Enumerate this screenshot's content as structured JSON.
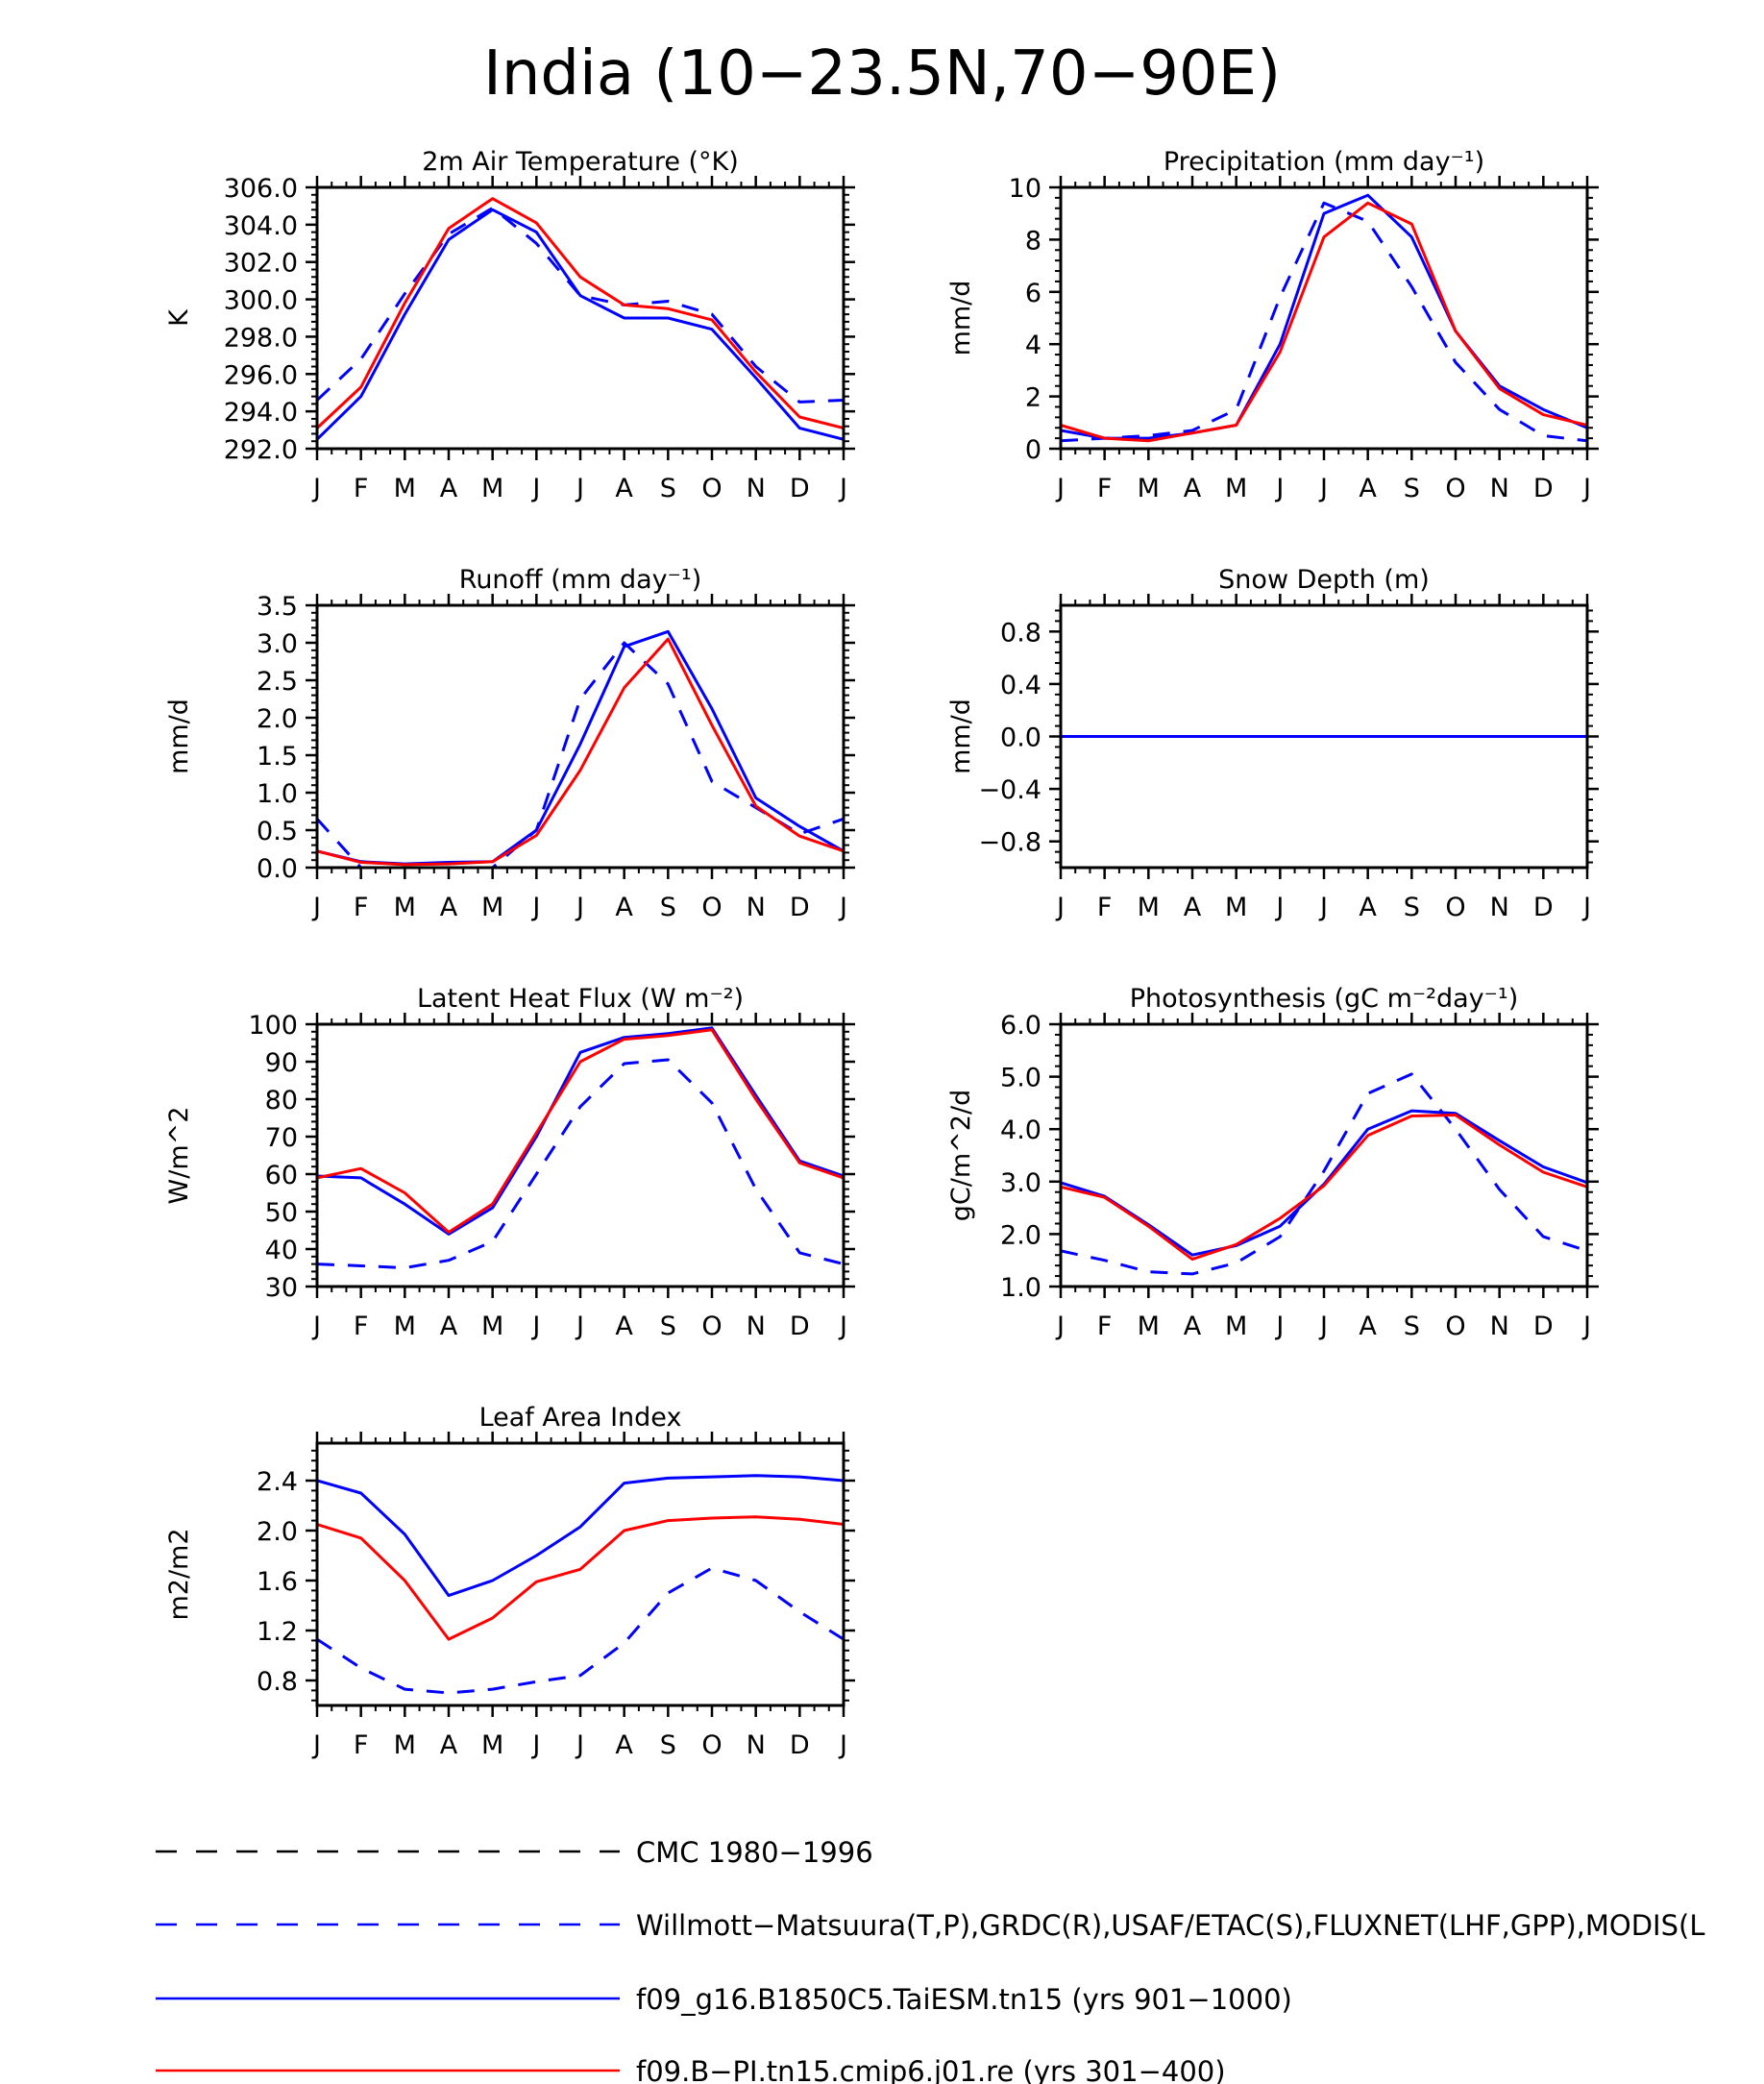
{
  "title": "India (10−23.5N,70−90E)",
  "colors": {
    "obs": "#0000ff",
    "model1": "#0000ff",
    "model2": "#ff0000",
    "cmc": "#000000"
  },
  "legend": [
    {
      "key": "cmc",
      "label": "CMC 1980−1996",
      "color": "#000000",
      "dash": true
    },
    {
      "key": "obs",
      "label": "Willmott−Matsuura(T,P),GRDC(R),USAF/ETAC(S),FLUXNET(LHF,GPP),MODIS(L",
      "color": "#0000ff",
      "dash": true
    },
    {
      "key": "model1",
      "label": "f09_g16.B1850C5.TaiESM.tn15 (yrs 901−1000)",
      "color": "#0000ff",
      "dash": false
    },
    {
      "key": "model2",
      "label": "f09.B−PI.tn15.cmip6.j01.re (yrs 301−400)",
      "color": "#ff0000",
      "dash": false
    }
  ],
  "chart_data": [
    {
      "type": "line",
      "title": "2m Air Temperature (°K)",
      "ylabel": "K",
      "x": [
        "J",
        "F",
        "M",
        "A",
        "M",
        "J",
        "J",
        "A",
        "S",
        "O",
        "N",
        "D",
        "J"
      ],
      "ylim": [
        292,
        306
      ],
      "yticks": [
        292,
        294,
        296,
        298,
        300,
        302,
        304,
        306
      ],
      "yticklabels": [
        "292.0",
        "294.0",
        "296.0",
        "298.0",
        "300.0",
        "302.0",
        "304.0",
        "306.0"
      ],
      "series": [
        {
          "key": "obs",
          "dash": true,
          "values": [
            294.6,
            296.8,
            300.3,
            303.5,
            304.9,
            303.0,
            300.2,
            299.7,
            299.9,
            299.2,
            296.4,
            294.5,
            294.6
          ]
        },
        {
          "key": "model1",
          "dash": false,
          "values": [
            292.5,
            294.8,
            299.2,
            303.2,
            304.8,
            303.6,
            300.2,
            299.0,
            299.0,
            298.4,
            295.8,
            293.1,
            292.5
          ]
        },
        {
          "key": "model2",
          "dash": false,
          "values": [
            293.1,
            295.3,
            299.8,
            303.8,
            305.4,
            304.1,
            301.2,
            299.7,
            299.5,
            298.9,
            296.1,
            293.7,
            293.1
          ]
        }
      ]
    },
    {
      "type": "line",
      "title": "Precipitation (mm day⁻¹)",
      "ylabel": "mm/d",
      "x": [
        "J",
        "F",
        "M",
        "A",
        "M",
        "J",
        "J",
        "A",
        "S",
        "O",
        "N",
        "D",
        "J"
      ],
      "ylim": [
        0,
        10
      ],
      "yticks": [
        0,
        2,
        4,
        6,
        8,
        10
      ],
      "yticklabels": [
        "0",
        "2",
        "4",
        "6",
        "8",
        "10"
      ],
      "series": [
        {
          "key": "obs",
          "dash": true,
          "values": [
            0.3,
            0.4,
            0.5,
            0.7,
            1.5,
            5.8,
            9.4,
            8.7,
            6.2,
            3.3,
            1.5,
            0.5,
            0.3
          ]
        },
        {
          "key": "model1",
          "dash": false,
          "values": [
            0.7,
            0.4,
            0.4,
            0.6,
            0.9,
            4.0,
            9.0,
            9.7,
            8.1,
            4.5,
            2.4,
            1.5,
            0.8
          ]
        },
        {
          "key": "model2",
          "dash": false,
          "values": [
            0.9,
            0.4,
            0.3,
            0.6,
            0.9,
            3.7,
            8.1,
            9.4,
            8.6,
            4.5,
            2.3,
            1.3,
            0.9
          ]
        }
      ]
    },
    {
      "type": "line",
      "title": "Runoff (mm day⁻¹)",
      "ylabel": "mm/d",
      "x": [
        "J",
        "F",
        "M",
        "A",
        "M",
        "J",
        "J",
        "A",
        "S",
        "O",
        "N",
        "D",
        "J"
      ],
      "ylim": [
        0,
        3.5
      ],
      "yticks": [
        0,
        0.5,
        1.0,
        1.5,
        2.0,
        2.5,
        3.0,
        3.5
      ],
      "yticklabels": [
        "0.0",
        "0.5",
        "1.0",
        "1.5",
        "2.0",
        "2.5",
        "3.0",
        "3.5"
      ],
      "series": [
        {
          "key": "obs",
          "dash": true,
          "values": [
            0.65,
            0.0,
            0.0,
            0.0,
            0.0,
            0.5,
            2.25,
            3.0,
            2.45,
            1.15,
            0.8,
            0.45,
            0.65
          ]
        },
        {
          "key": "model1",
          "dash": false,
          "values": [
            0.22,
            0.08,
            0.05,
            0.07,
            0.08,
            0.5,
            1.65,
            2.95,
            3.15,
            2.12,
            0.93,
            0.55,
            0.22
          ]
        },
        {
          "key": "model2",
          "dash": false,
          "values": [
            0.22,
            0.07,
            0.04,
            0.05,
            0.08,
            0.43,
            1.3,
            2.4,
            3.05,
            1.9,
            0.82,
            0.42,
            0.22
          ]
        }
      ]
    },
    {
      "type": "line",
      "title": "Snow Depth (m)",
      "ylabel": "mm/d",
      "x": [
        "J",
        "F",
        "M",
        "A",
        "M",
        "J",
        "J",
        "A",
        "S",
        "O",
        "N",
        "D",
        "J"
      ],
      "ylim": [
        -1.0,
        1.0
      ],
      "yticks": [
        -0.8,
        -0.4,
        0.0,
        0.4,
        0.8
      ],
      "yticklabels": [
        "−0.8",
        "−0.4",
        "0.0",
        "0.4",
        "0.8"
      ],
      "series": [
        {
          "key": "cmc",
          "dash": true,
          "values": [
            0,
            0,
            0,
            0,
            0,
            0,
            0,
            0,
            0,
            0,
            0,
            0,
            0
          ]
        },
        {
          "key": "model2",
          "dash": false,
          "values": [
            0,
            0,
            0,
            0,
            0,
            0,
            0,
            0,
            0,
            0,
            0,
            0,
            0
          ]
        },
        {
          "key": "model1",
          "dash": false,
          "values": [
            0,
            0,
            0,
            0,
            0,
            0,
            0,
            0,
            0,
            0,
            0,
            0,
            0
          ]
        },
        {
          "key": "obs",
          "dash": true,
          "values": [
            0,
            0,
            0,
            0,
            0,
            0,
            0,
            0,
            0,
            0,
            0,
            0,
            0
          ]
        }
      ]
    },
    {
      "type": "line",
      "title": "Latent Heat Flux (W m⁻²)",
      "ylabel": "W/m^2",
      "x": [
        "J",
        "F",
        "M",
        "A",
        "M",
        "J",
        "J",
        "A",
        "S",
        "O",
        "N",
        "D",
        "J"
      ],
      "ylim": [
        30,
        100
      ],
      "yticks": [
        30,
        40,
        50,
        60,
        70,
        80,
        90,
        100
      ],
      "yticklabels": [
        "30",
        "40",
        "50",
        "60",
        "70",
        "80",
        "90",
        "100"
      ],
      "series": [
        {
          "key": "obs",
          "dash": true,
          "values": [
            36,
            35.5,
            35,
            37,
            42,
            60,
            78,
            89.5,
            90.5,
            79,
            56,
            39,
            36
          ]
        },
        {
          "key": "model1",
          "dash": false,
          "values": [
            59.5,
            59,
            52,
            44,
            51,
            70,
            92.5,
            96.5,
            97.5,
            99,
            81,
            63.5,
            59.5
          ]
        },
        {
          "key": "model2",
          "dash": false,
          "values": [
            59,
            61.5,
            55,
            44.5,
            52,
            71,
            90,
            96,
            97,
            98.5,
            80,
            63,
            59
          ]
        }
      ]
    },
    {
      "type": "line",
      "title": "Photosynthesis (gC m⁻²day⁻¹)",
      "ylabel": "gC/m^2/d",
      "x": [
        "J",
        "F",
        "M",
        "A",
        "M",
        "J",
        "J",
        "A",
        "S",
        "O",
        "N",
        "D",
        "J"
      ],
      "ylim": [
        1.0,
        6.0
      ],
      "yticks": [
        1.0,
        2.0,
        3.0,
        4.0,
        5.0,
        6.0
      ],
      "yticklabels": [
        "1.0",
        "2.0",
        "3.0",
        "4.0",
        "5.0",
        "6.0"
      ],
      "series": [
        {
          "key": "obs",
          "dash": true,
          "values": [
            1.68,
            1.5,
            1.28,
            1.24,
            1.45,
            1.95,
            3.2,
            4.68,
            5.05,
            4.0,
            2.85,
            1.95,
            1.68
          ]
        },
        {
          "key": "model1",
          "dash": false,
          "values": [
            2.98,
            2.72,
            2.18,
            1.6,
            1.78,
            2.15,
            2.95,
            4.0,
            4.35,
            4.3,
            3.78,
            3.28,
            2.98
          ]
        },
        {
          "key": "model2",
          "dash": false,
          "values": [
            2.9,
            2.7,
            2.15,
            1.52,
            1.8,
            2.3,
            2.92,
            3.88,
            4.25,
            4.27,
            3.7,
            3.18,
            2.9
          ]
        }
      ]
    },
    {
      "type": "line",
      "title": "Leaf Area Index",
      "ylabel": "m2/m2",
      "x": [
        "J",
        "F",
        "M",
        "A",
        "M",
        "J",
        "J",
        "A",
        "S",
        "O",
        "N",
        "D",
        "J"
      ],
      "ylim": [
        0.6,
        2.7
      ],
      "yticks": [
        0.8,
        1.2,
        1.6,
        2.0,
        2.4
      ],
      "yticklabels": [
        "0.8",
        "1.2",
        "1.6",
        "2.0",
        "2.4"
      ],
      "series": [
        {
          "key": "obs",
          "dash": true,
          "values": [
            1.13,
            0.9,
            0.73,
            0.7,
            0.73,
            0.79,
            0.84,
            1.1,
            1.5,
            1.7,
            1.6,
            1.35,
            1.13
          ]
        },
        {
          "key": "model1",
          "dash": false,
          "values": [
            2.4,
            2.3,
            1.97,
            1.48,
            1.6,
            1.8,
            2.03,
            2.38,
            2.42,
            2.43,
            2.44,
            2.43,
            2.4
          ]
        },
        {
          "key": "model2",
          "dash": false,
          "values": [
            2.05,
            1.94,
            1.6,
            1.13,
            1.3,
            1.59,
            1.69,
            2.0,
            2.08,
            2.1,
            2.11,
            2.09,
            2.05
          ]
        }
      ]
    }
  ]
}
